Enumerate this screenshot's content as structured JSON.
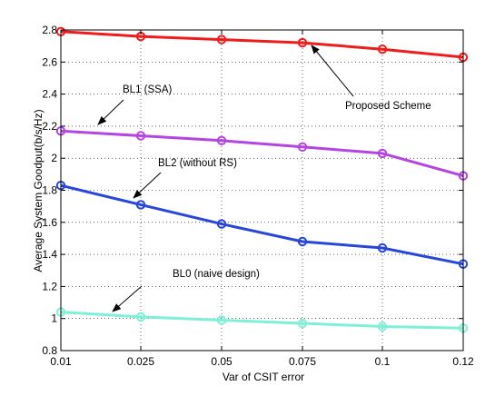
{
  "chart_data": {
    "type": "line",
    "xlabel": "Var of CSIT error",
    "ylabel": "Average System Goodput(b/s/Hz)",
    "x": [
      0.01,
      0.025,
      0.05,
      0.075,
      0.1,
      0.12
    ],
    "x_tick_labels": [
      "0.01",
      "0.025",
      "0.05",
      "0.075",
      "0.1",
      "0.12"
    ],
    "ylim": [
      0.8,
      2.8
    ],
    "y_ticks": [
      0.8,
      1.0,
      1.2,
      1.4,
      1.6,
      1.8,
      2.0,
      2.2,
      2.4,
      2.6,
      2.8
    ],
    "y_tick_labels": [
      "0.8",
      "1",
      "1.2",
      "1.4",
      "1.6",
      "1.8",
      "2",
      "2.2",
      "2.4",
      "2.6",
      "2.8"
    ],
    "grid": true,
    "marker": "circle",
    "series": [
      {
        "name": "Proposed Scheme",
        "color": "#ee1c1c",
        "values": [
          2.79,
          2.76,
          2.74,
          2.72,
          2.68,
          2.63
        ]
      },
      {
        "name": "BL1 (SSA)",
        "color": "#b445e0",
        "values": [
          2.17,
          2.14,
          2.11,
          2.07,
          2.03,
          1.89
        ]
      },
      {
        "name": "BL2 (without RS)",
        "color": "#2846d8",
        "values": [
          1.83,
          1.71,
          1.59,
          1.48,
          1.44,
          1.34
        ]
      },
      {
        "name": "BL0 (naive design)",
        "color": "#7ef0d8",
        "values": [
          1.04,
          1.01,
          0.99,
          0.97,
          0.95,
          0.94
        ]
      }
    ]
  }
}
